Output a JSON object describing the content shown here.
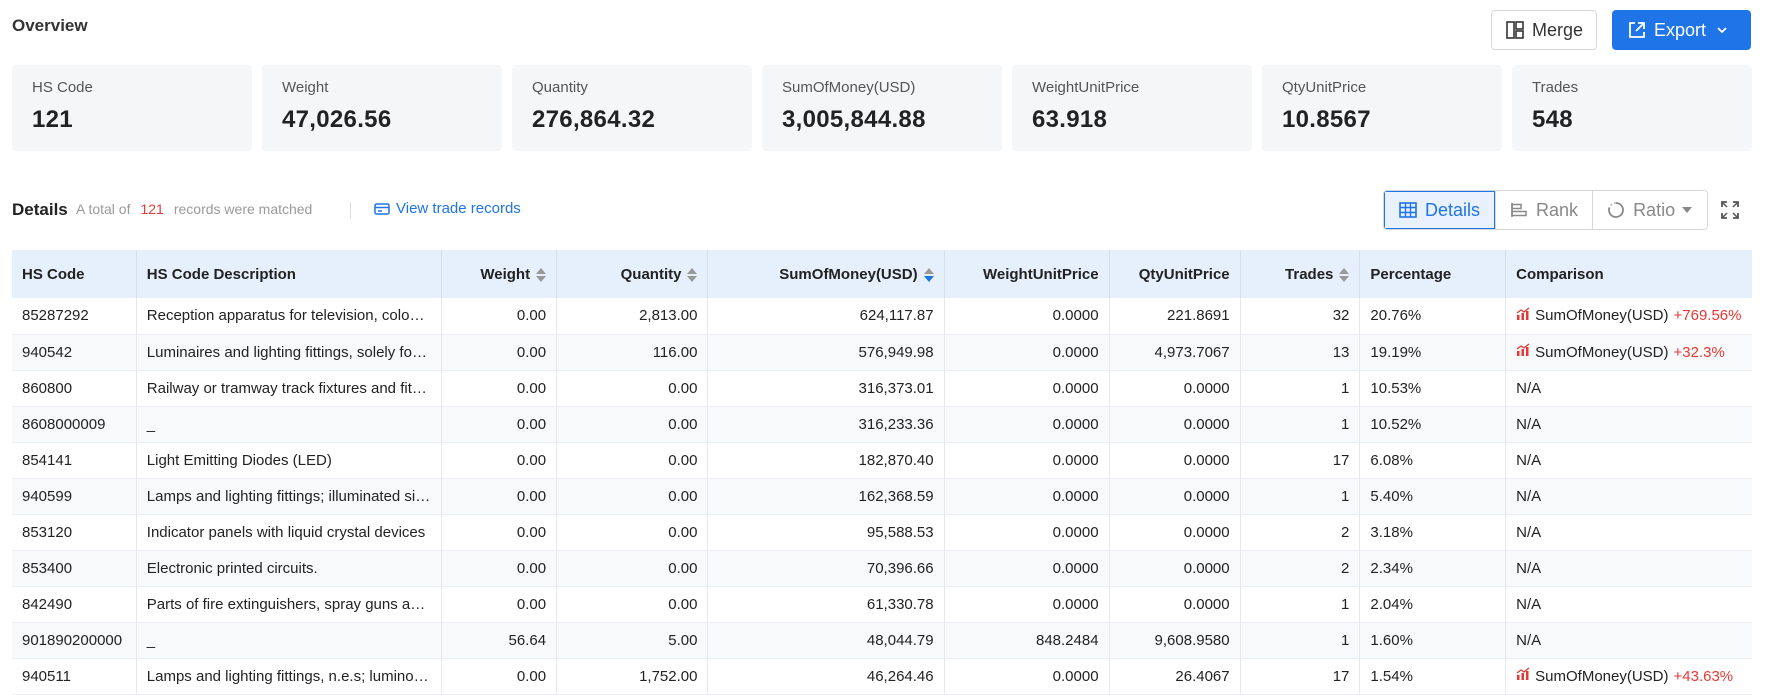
{
  "header": {
    "title": "Overview",
    "merge_label": "Merge",
    "export_label": "Export"
  },
  "cards": [
    {
      "label": "HS Code",
      "value": "121"
    },
    {
      "label": "Weight",
      "value": "47,026.56"
    },
    {
      "label": "Quantity",
      "value": "276,864.32"
    },
    {
      "label": "SumOfMoney(USD)",
      "value": "3,005,844.88"
    },
    {
      "label": "WeightUnitPrice",
      "value": "63.918"
    },
    {
      "label": "QtyUnitPrice",
      "value": "10.8567"
    },
    {
      "label": "Trades",
      "value": "548"
    }
  ],
  "details": {
    "title": "Details",
    "note_prefix": "A total of",
    "count": "121",
    "note_suffix": "records were matched",
    "view_link": "View trade records",
    "tabs": [
      "Details",
      "Rank",
      "Ratio"
    ],
    "active_tab": "Details"
  },
  "table": {
    "columns": [
      "HS Code",
      "HS Code Description",
      "Weight",
      "Quantity",
      "SumOfMoney(USD)",
      "WeightUnitPrice",
      "QtyUnitPrice",
      "Trades",
      "Percentage",
      "Comparison"
    ],
    "sort_column": "SumOfMoney(USD)",
    "sort_direction": "desc",
    "rows": [
      {
        "code": "85287292",
        "desc": "Reception apparatus for television, colour video monitors",
        "weight": "0.00",
        "qty": "2,813.00",
        "sum": "624,117.87",
        "wup": "0.0000",
        "qup": "221.8691",
        "trades": "32",
        "pct": "20.76%",
        "cmp_label": "SumOfMoney(USD)",
        "cmp_delta": "+769.56%"
      },
      {
        "code": "940542",
        "desc": "Luminaires and lighting fittings, solely for use with LEDs",
        "weight": "0.00",
        "qty": "116.00",
        "sum": "576,949.98",
        "wup": "0.0000",
        "qup": "4,973.7067",
        "trades": "13",
        "pct": "19.19%",
        "cmp_label": "SumOfMoney(USD)",
        "cmp_delta": "+32.3%"
      },
      {
        "code": "860800",
        "desc": "Railway or tramway track fixtures and fittings",
        "weight": "0.00",
        "qty": "0.00",
        "sum": "316,373.01",
        "wup": "0.0000",
        "qup": "0.0000",
        "trades": "1",
        "pct": "10.53%",
        "cmp_label": "N/A",
        "cmp_delta": ""
      },
      {
        "code": "8608000009",
        "desc": "_",
        "weight": "0.00",
        "qty": "0.00",
        "sum": "316,233.36",
        "wup": "0.0000",
        "qup": "0.0000",
        "trades": "1",
        "pct": "10.52%",
        "cmp_label": "N/A",
        "cmp_delta": ""
      },
      {
        "code": "854141",
        "desc": "Light Emitting Diodes (LED)",
        "weight": "0.00",
        "qty": "0.00",
        "sum": "182,870.40",
        "wup": "0.0000",
        "qup": "0.0000",
        "trades": "17",
        "pct": "6.08%",
        "cmp_label": "N/A",
        "cmp_delta": ""
      },
      {
        "code": "940599",
        "desc": "Lamps and lighting fittings; illuminated signs",
        "weight": "0.00",
        "qty": "0.00",
        "sum": "162,368.59",
        "wup": "0.0000",
        "qup": "0.0000",
        "trades": "1",
        "pct": "5.40%",
        "cmp_label": "N/A",
        "cmp_delta": ""
      },
      {
        "code": "853120",
        "desc": "Indicator panels with liquid crystal devices",
        "weight": "0.00",
        "qty": "0.00",
        "sum": "95,588.53",
        "wup": "0.0000",
        "qup": "0.0000",
        "trades": "2",
        "pct": "3.18%",
        "cmp_label": "N/A",
        "cmp_delta": ""
      },
      {
        "code": "853400",
        "desc": "Electronic printed circuits.",
        "weight": "0.00",
        "qty": "0.00",
        "sum": "70,396.66",
        "wup": "0.0000",
        "qup": "0.0000",
        "trades": "2",
        "pct": "2.34%",
        "cmp_label": "N/A",
        "cmp_delta": ""
      },
      {
        "code": "842490",
        "desc": "Parts of fire extinguishers, spray guns and similar",
        "weight": "0.00",
        "qty": "0.00",
        "sum": "61,330.78",
        "wup": "0.0000",
        "qup": "0.0000",
        "trades": "1",
        "pct": "2.04%",
        "cmp_label": "N/A",
        "cmp_delta": ""
      },
      {
        "code": "901890200000",
        "desc": "_",
        "weight": "56.64",
        "qty": "5.00",
        "sum": "48,044.79",
        "wup": "848.2484",
        "qup": "9,608.9580",
        "trades": "1",
        "pct": "1.60%",
        "cmp_label": "N/A",
        "cmp_delta": ""
      },
      {
        "code": "940511",
        "desc": "Lamps and lighting fittings, n.e.s; luminous signs",
        "weight": "0.00",
        "qty": "1,752.00",
        "sum": "46,264.46",
        "wup": "0.0000",
        "qup": "26.4067",
        "trades": "17",
        "pct": "1.54%",
        "cmp_label": "SumOfMoney(USD)",
        "cmp_delta": "+43.63%"
      }
    ]
  },
  "colors": {
    "accent": "#1f74e8",
    "increase": "#e53935",
    "header_bg": "#e6effc"
  }
}
